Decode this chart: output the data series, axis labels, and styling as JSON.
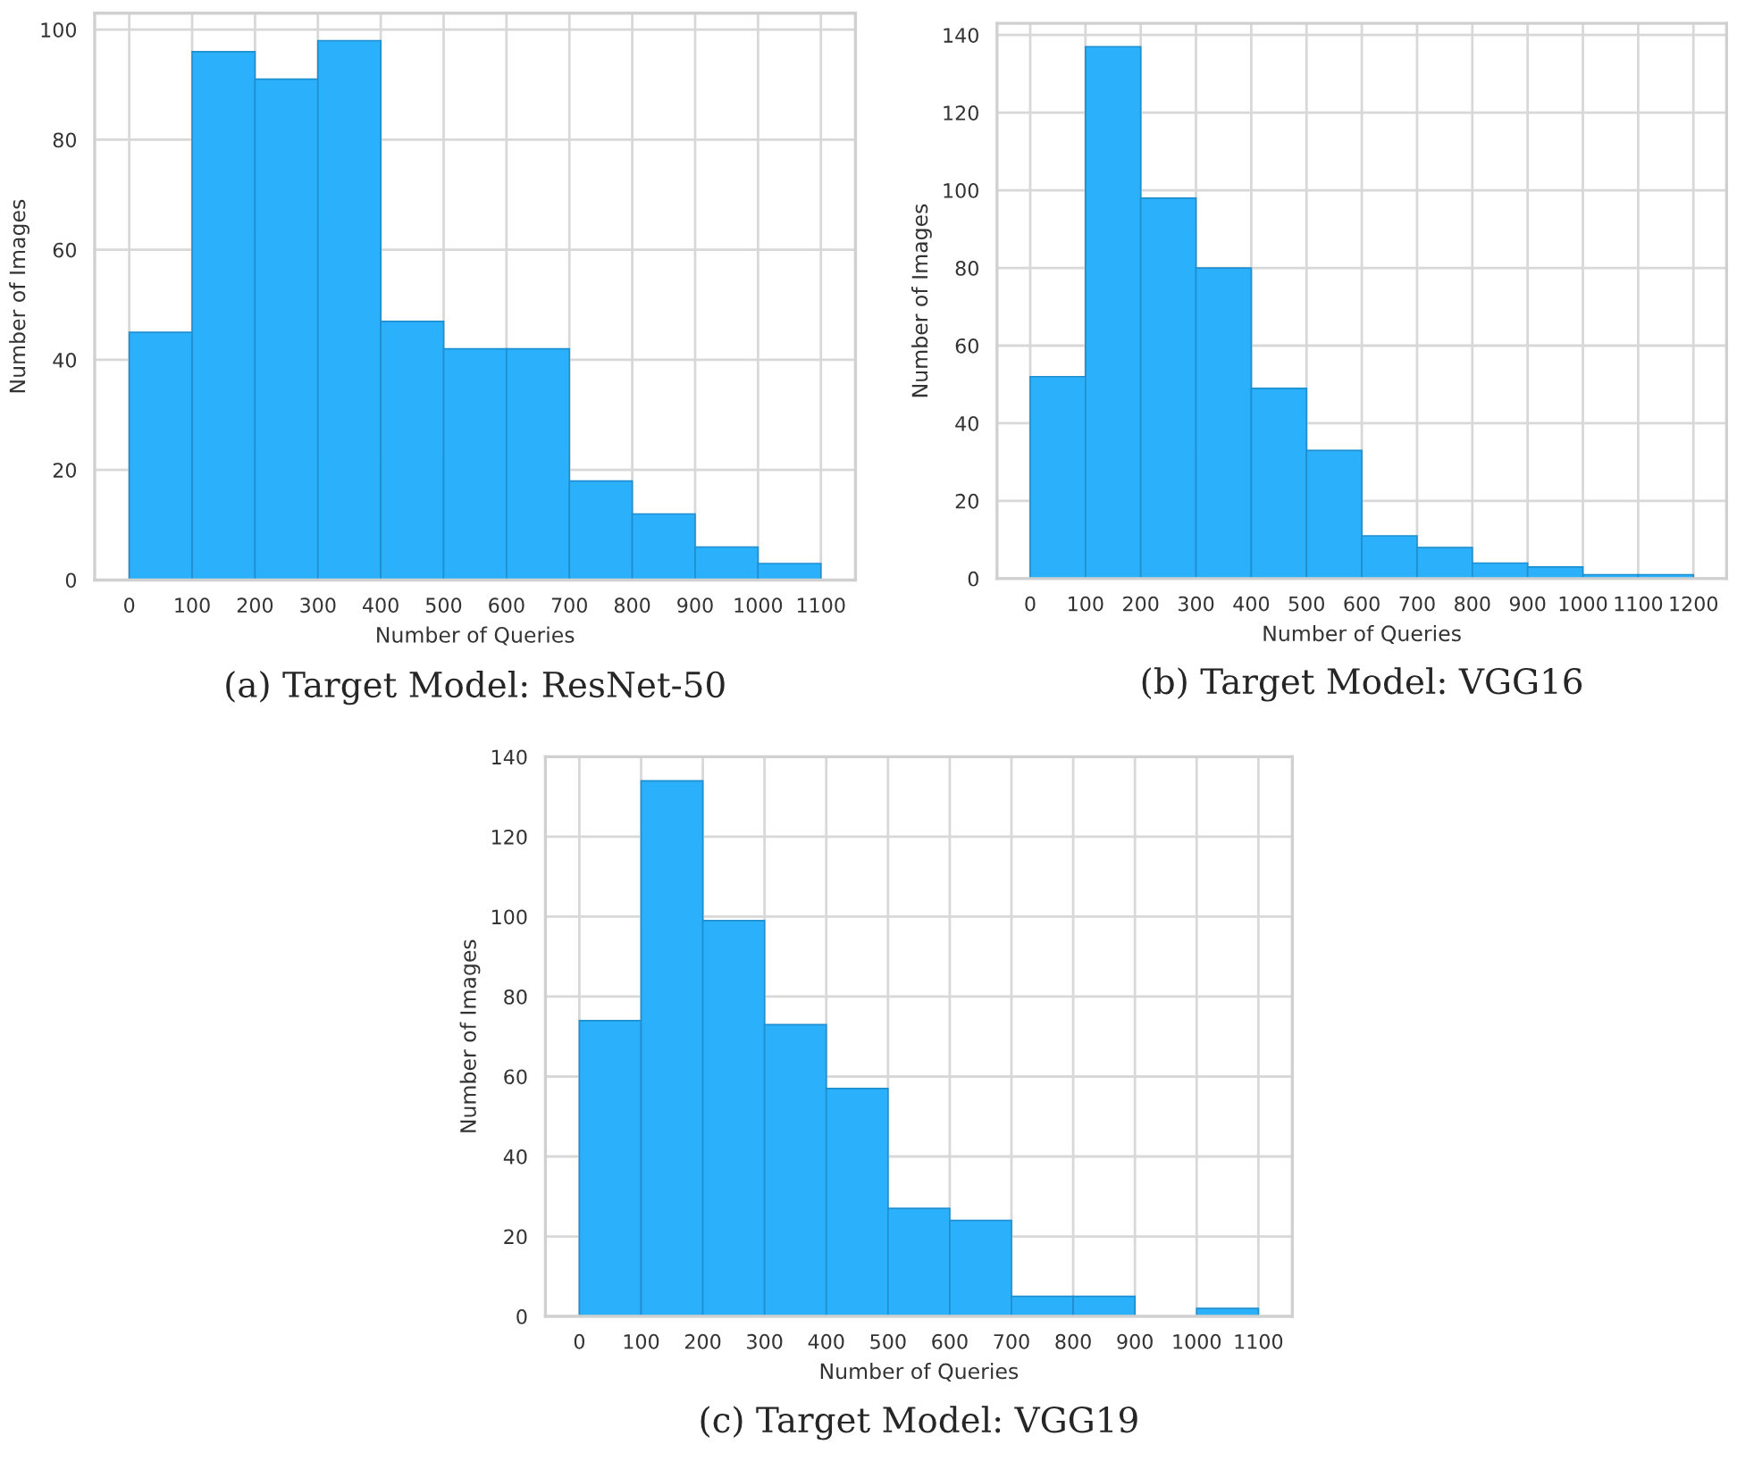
{
  "chart_data": [
    {
      "type": "histogram",
      "xlabel": "Number of Queries",
      "ylabel": "Number of Images",
      "color": "#2bb0fc",
      "grid": true,
      "bins": [
        0,
        100,
        200,
        300,
        400,
        500,
        600,
        700,
        800,
        900,
        1000,
        1100
      ],
      "values": [
        45,
        96,
        91,
        98,
        47,
        42,
        42,
        18,
        12,
        6,
        3
      ],
      "xlim": [
        -55,
        1155
      ],
      "ylim": [
        0,
        103
      ],
      "xticks": [
        0,
        100,
        200,
        300,
        400,
        500,
        600,
        700,
        800,
        900,
        1000,
        1100
      ],
      "yticks": [
        0,
        20,
        40,
        60,
        80,
        100
      ],
      "annotations": [
        "(a) Target Model: ResNet-50"
      ]
    },
    {
      "type": "histogram",
      "xlabel": "Number of Queries",
      "ylabel": "Number of Images",
      "color": "#2bb0fc",
      "grid": true,
      "bins": [
        0,
        100,
        200,
        300,
        400,
        500,
        600,
        700,
        800,
        900,
        1000,
        1100,
        1200
      ],
      "values": [
        52,
        137,
        98,
        80,
        49,
        33,
        11,
        8,
        4,
        3,
        1,
        1
      ],
      "xlim": [
        -60,
        1260
      ],
      "ylim": [
        0,
        143
      ],
      "xticks": [
        0,
        100,
        200,
        300,
        400,
        500,
        600,
        700,
        800,
        900,
        1000,
        1100,
        1200
      ],
      "yticks": [
        0,
        20,
        40,
        60,
        80,
        100,
        120,
        140
      ],
      "annotations": [
        "(b) Target Model: VGG16"
      ]
    },
    {
      "type": "histogram",
      "xlabel": "Number of Queries",
      "ylabel": "Number of Images",
      "color": "#2bb0fc",
      "grid": true,
      "bins": [
        0,
        100,
        200,
        300,
        400,
        500,
        600,
        700,
        800,
        900,
        1000,
        1100
      ],
      "values": [
        74,
        134,
        99,
        73,
        57,
        27,
        24,
        5,
        5,
        0,
        2
      ],
      "xlim": [
        -55,
        1155
      ],
      "ylim": [
        0,
        140
      ],
      "xticks": [
        0,
        100,
        200,
        300,
        400,
        500,
        600,
        700,
        800,
        900,
        1000,
        1100
      ],
      "yticks": [
        0,
        20,
        40,
        60,
        80,
        100,
        120,
        140
      ],
      "annotations": [
        "(c) Target Model: VGG19"
      ]
    }
  ]
}
